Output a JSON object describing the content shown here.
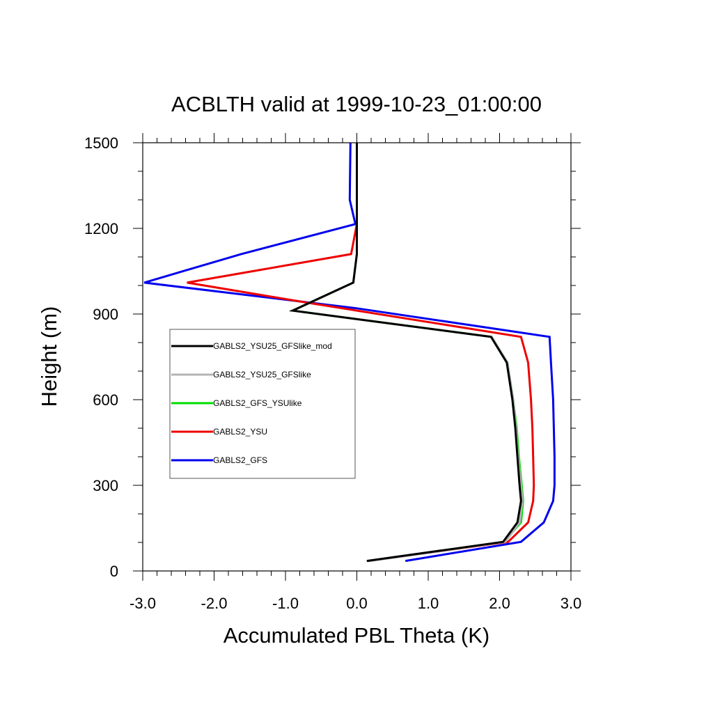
{
  "chart_data": {
    "type": "line",
    "title": "ACBLTH valid at 1999-10-23_01:00:00",
    "xlabel": "Accumulated PBL Theta (K)",
    "ylabel": "Height (m)",
    "xlim": [
      -3.0,
      3.0
    ],
    "ylim": [
      0,
      1500
    ],
    "xticks": [
      -3.0,
      -2.0,
      -1.0,
      0.0,
      1.0,
      2.0,
      3.0
    ],
    "xtick_labels": [
      "-3.0",
      "-2.0",
      "-1.0",
      "0.0",
      "1.0",
      "2.0",
      "3.0"
    ],
    "yticks": [
      0,
      300,
      600,
      900,
      1200,
      1500
    ],
    "ytick_labels": [
      "0",
      "300",
      "600",
      "900",
      "1200",
      "1500"
    ],
    "grid": false,
    "legend_position": "middle-left",
    "series": [
      {
        "name": "GABLS2_YSU25_GFSlike_mod",
        "color": "#000000",
        "points": [
          [
            0.14,
            35
          ],
          [
            2.05,
            102
          ],
          [
            2.25,
            170
          ],
          [
            2.3,
            245
          ],
          [
            2.28,
            300
          ],
          [
            2.25,
            400
          ],
          [
            2.22,
            500
          ],
          [
            2.18,
            600
          ],
          [
            2.1,
            730
          ],
          [
            1.88,
            820
          ],
          [
            -0.9,
            912
          ],
          [
            -0.05,
            1010
          ],
          [
            0.0,
            1110
          ],
          [
            0.0,
            1215
          ],
          [
            0.0,
            1500
          ]
        ]
      },
      {
        "name": "GABLS2_YSU25_GFSlike",
        "color": "#b4b4b4",
        "points": [
          [
            0.18,
            35
          ],
          [
            2.08,
            102
          ],
          [
            2.28,
            170
          ],
          [
            2.32,
            245
          ],
          [
            2.3,
            300
          ],
          [
            2.26,
            400
          ],
          [
            2.23,
            500
          ],
          [
            2.19,
            600
          ],
          [
            2.11,
            730
          ],
          [
            1.89,
            820
          ],
          [
            -0.9,
            912
          ],
          [
            -0.05,
            1010
          ],
          [
            0.0,
            1110
          ],
          [
            0.0,
            1215
          ],
          [
            0.0,
            1500
          ]
        ]
      },
      {
        "name": "GABLS2_GFS_YSUlike",
        "color": "#00dd00",
        "points": [
          [
            0.16,
            35
          ],
          [
            2.06,
            102
          ],
          [
            2.3,
            170
          ],
          [
            2.33,
            245
          ],
          [
            2.31,
            300
          ],
          [
            2.27,
            400
          ],
          [
            2.24,
            500
          ],
          [
            2.19,
            600
          ],
          [
            2.11,
            730
          ],
          [
            1.89,
            820
          ],
          [
            -0.9,
            912
          ],
          [
            -0.05,
            1010
          ],
          [
            0.0,
            1110
          ],
          [
            0.0,
            1215
          ],
          [
            0.0,
            1500
          ]
        ]
      },
      {
        "name": "GABLS2_YSU",
        "color": "#ee0000",
        "points": [
          [
            0.16,
            35
          ],
          [
            2.12,
            102
          ],
          [
            2.4,
            170
          ],
          [
            2.47,
            245
          ],
          [
            2.48,
            300
          ],
          [
            2.47,
            400
          ],
          [
            2.46,
            500
          ],
          [
            2.44,
            600
          ],
          [
            2.4,
            730
          ],
          [
            2.3,
            820
          ],
          [
            -0.7,
            940
          ],
          [
            -2.38,
            1010
          ],
          [
            -0.08,
            1110
          ],
          [
            0.0,
            1215
          ],
          [
            0.0,
            1500
          ]
        ]
      },
      {
        "name": "GABLS2_GFS",
        "color": "#0000ee",
        "points": [
          [
            0.68,
            35
          ],
          [
            2.3,
            102
          ],
          [
            2.62,
            170
          ],
          [
            2.75,
            245
          ],
          [
            2.77,
            300
          ],
          [
            2.77,
            400
          ],
          [
            2.76,
            500
          ],
          [
            2.75,
            600
          ],
          [
            2.72,
            730
          ],
          [
            2.7,
            820
          ],
          [
            0.0,
            920
          ],
          [
            -2.98,
            1010
          ],
          [
            -1.62,
            1110
          ],
          [
            -0.02,
            1215
          ],
          [
            -0.1,
            1300
          ],
          [
            -0.09,
            1500
          ]
        ]
      }
    ]
  }
}
